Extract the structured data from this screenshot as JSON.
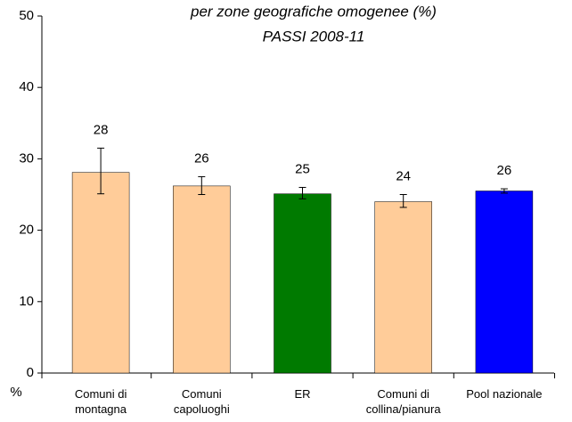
{
  "chart_data": {
    "type": "bar",
    "title_lines": [
      "per zone geografiche omogenee (%)",
      "PASSI 2008-11"
    ],
    "y_label": "%",
    "categories": [
      "Comuni di\nmontagna",
      "Comuni\ncapoluoghi",
      "ER",
      "Comuni di\ncollina/pianura",
      "Pool nazionale"
    ],
    "values": [
      28.1,
      26.2,
      25.1,
      24.0,
      25.5
    ],
    "value_labels": [
      "28",
      "26",
      "25",
      "24",
      "26"
    ],
    "ci_low": [
      25.1,
      25.0,
      24.4,
      23.2,
      25.2
    ],
    "ci_high": [
      31.5,
      27.5,
      26.0,
      25.0,
      25.8
    ],
    "colors": [
      "#ffcc99",
      "#ffcc99",
      "#007a00",
      "#ffcc99",
      "#0000ff"
    ],
    "ylim": [
      0,
      50
    ],
    "yticks": [
      0,
      10,
      20,
      30,
      40,
      50
    ]
  }
}
